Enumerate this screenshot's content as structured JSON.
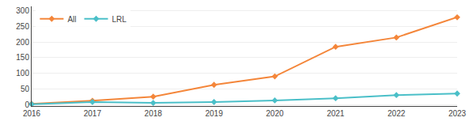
{
  "chart_data": {
    "type": "line",
    "x": [
      2016,
      2017,
      2018,
      2019,
      2020,
      2021,
      2022,
      2023
    ],
    "series": [
      {
        "name": "All",
        "color": "#F4863A",
        "values": [
          2,
          12,
          25,
          63,
          90,
          185,
          215,
          280
        ]
      },
      {
        "name": "LRL",
        "color": "#4ABFC8",
        "values": [
          1,
          8,
          5,
          8,
          13,
          20,
          30,
          35
        ]
      }
    ],
    "xlim": [
      2016,
      2023
    ],
    "xticks": [
      2016,
      2017,
      2018,
      2019,
      2020,
      2021,
      2022,
      2023
    ],
    "ylim": [
      -5,
      315
    ],
    "yticks": [
      0,
      50,
      100,
      150,
      200,
      250,
      300
    ],
    "grid": true,
    "legend": "upper left",
    "marker": "diamond"
  }
}
